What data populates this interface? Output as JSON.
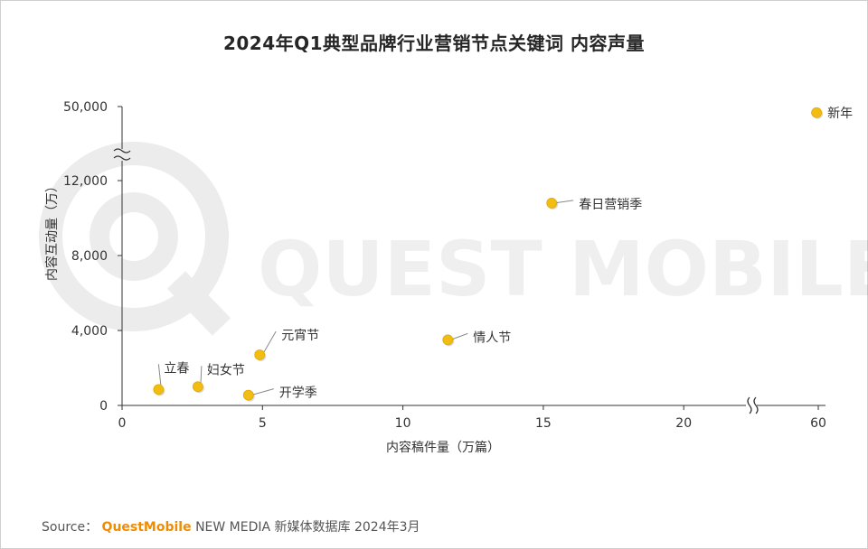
{
  "title": "2024年Q1典型品牌行业营销节点关键词 内容声量",
  "source": {
    "prefix": "Source：",
    "brand": "QuestMobile",
    "suffix": "NEW MEDIA 新媒体数据库 2024年3月"
  },
  "watermark": "QUEST MOBILE",
  "colors": {
    "point": "#f2bd13",
    "point_edge": "#e0a800",
    "brand": "#f08c00",
    "axis": "#333333"
  },
  "chart_data": {
    "type": "scatter",
    "xlabel": "内容稿件量（万篇）",
    "ylabel": "内容互动量（万）",
    "x_ticks": [
      "0",
      "5",
      "10",
      "15",
      "20",
      "60"
    ],
    "y_ticks": [
      "0",
      "4,000",
      "8,000",
      "12,000",
      "50,000"
    ],
    "x_break": true,
    "y_break": true,
    "points": [
      {
        "label": "新年",
        "x": 59,
        "y": 44000
      },
      {
        "label": "春日营销季",
        "x": 15.3,
        "y": 10800
      },
      {
        "label": "情人节",
        "x": 11.6,
        "y": 3500
      },
      {
        "label": "元宵节",
        "x": 4.9,
        "y": 2700
      },
      {
        "label": "立春",
        "x": 1.3,
        "y": 850
      },
      {
        "label": "妇女节",
        "x": 2.7,
        "y": 1000
      },
      {
        "label": "开学季",
        "x": 4.5,
        "y": 550
      }
    ]
  }
}
